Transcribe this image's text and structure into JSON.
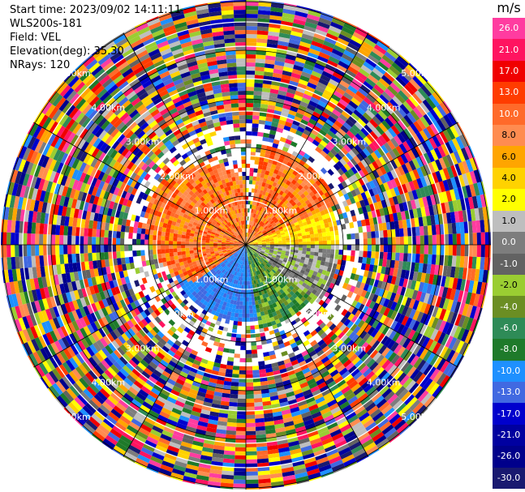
{
  "header": {
    "start_time": "Start time: 2023/09/02 14:11:11",
    "instrument": "WLS200s-181",
    "field": "Field: VEL",
    "elevation": "Elevation(deg): 35.30",
    "nrays": "NRays: 120"
  },
  "range_labels": [
    "1.00km",
    "2.00km",
    "3.00km",
    "4.00km",
    "5.00km"
  ],
  "colorbar": {
    "unit": "m/s",
    "ticks": [
      "26.0",
      "21.0",
      "17.0",
      "13.0",
      "10.0",
      "8.0",
      "6.0",
      "4.0",
      "2.0",
      "1.0",
      "0.0",
      "-1.0",
      "-2.0",
      "-4.0",
      "-6.0",
      "-8.0",
      "-10.0",
      "-13.0",
      "-17.0",
      "-21.0",
      "-26.0",
      "-30.0"
    ],
    "colors": [
      "#ff3ca0",
      "#ff1460",
      "#f00000",
      "#ff3c00",
      "#ff6a2a",
      "#ff8c50",
      "#ffa500",
      "#ffd200",
      "#ffff00",
      "#bebebe",
      "#7d7d7d",
      "#626262",
      "#9acd32",
      "#6b8e23",
      "#2e8b57",
      "#1e7a2a",
      "#1e90ff",
      "#4169e1",
      "#0000cd",
      "#0000a0",
      "#00008b",
      "#191970"
    ]
  }
}
